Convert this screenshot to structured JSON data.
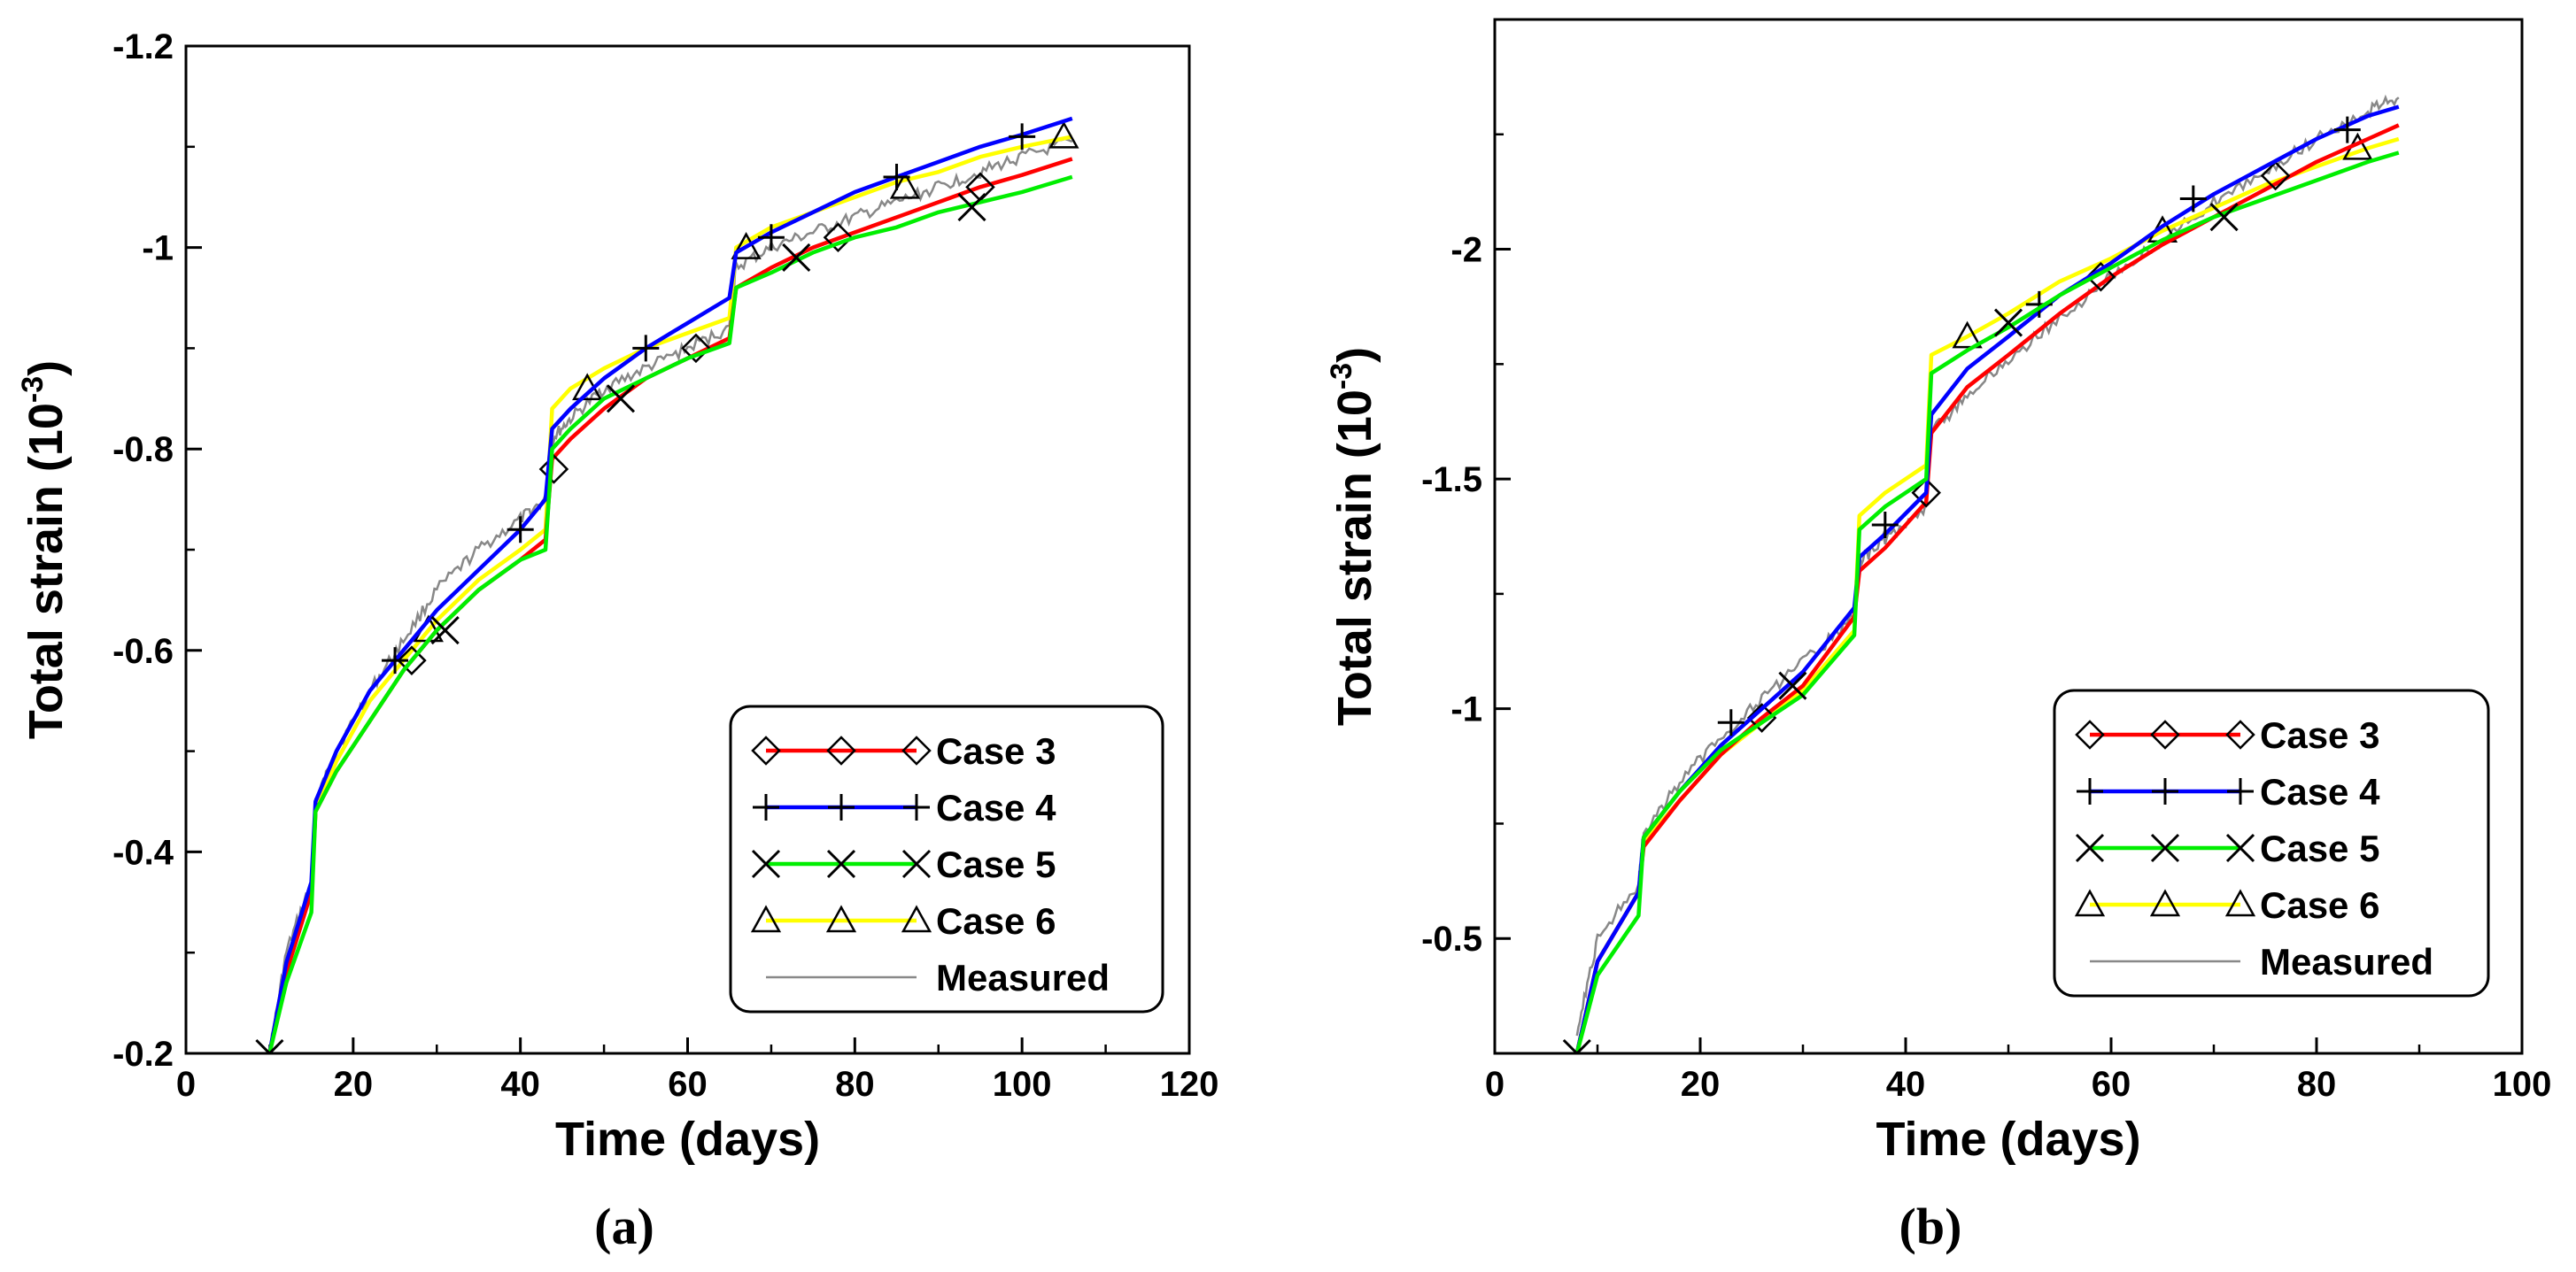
{
  "chart_data": [
    {
      "type": "line",
      "subfigure_label": "(a)",
      "xlabel": "Time (days)",
      "ylabel": "Total strain (10",
      "ylabel_exponent": "-3",
      "ylabel_close": ")",
      "xlim": [
        0,
        120
      ],
      "ylim": [
        -0.2,
        -1.2
      ],
      "xticks": [
        0,
        20,
        40,
        60,
        80,
        100,
        120
      ],
      "yticks": [
        -0.2,
        -0.4,
        -0.6,
        -0.8,
        -1,
        -1.2
      ],
      "xtick_labels": [
        "0",
        "20",
        "40",
        "60",
        "80",
        "100",
        "120"
      ],
      "ytick_labels": [
        "-0.2",
        "-0.4",
        "-0.6",
        "-0.8",
        "-1",
        "-1.2"
      ],
      "legend_position": "bottom-right",
      "series": [
        {
          "name": "Case 3",
          "color": "#ff0000",
          "marker": "diamond",
          "x": [
            10,
            12,
            15,
            15.5,
            18,
            22,
            26,
            30,
            35,
            40,
            43,
            43.8,
            46,
            50,
            55,
            60,
            65,
            65.8,
            70,
            75,
            80,
            85,
            90,
            95,
            100,
            106
          ],
          "y": [
            -0.2,
            -0.28,
            -0.36,
            -0.44,
            -0.48,
            -0.53,
            -0.58,
            -0.62,
            -0.66,
            -0.69,
            -0.71,
            -0.79,
            -0.81,
            -0.84,
            -0.87,
            -0.89,
            -0.91,
            -0.96,
            -0.98,
            -1.0,
            -1.015,
            -1.03,
            -1.045,
            -1.06,
            -1.072,
            -1.088
          ],
          "marker_x": [
            27,
            44,
            61,
            78,
            95
          ],
          "marker_y": [
            -0.59,
            -0.78,
            -0.9,
            -1.01,
            -1.06
          ]
        },
        {
          "name": "Case 4",
          "color": "#0000ff",
          "marker": "plus",
          "x": [
            10,
            12,
            15,
            15.5,
            18,
            22,
            26,
            30,
            35,
            40,
            43,
            43.8,
            46,
            50,
            55,
            60,
            65,
            65.8,
            70,
            75,
            80,
            85,
            90,
            95,
            100,
            106
          ],
          "y": [
            -0.2,
            -0.29,
            -0.37,
            -0.45,
            -0.5,
            -0.56,
            -0.6,
            -0.64,
            -0.68,
            -0.72,
            -0.75,
            -0.82,
            -0.84,
            -0.87,
            -0.9,
            -0.925,
            -0.95,
            -0.995,
            -1.015,
            -1.035,
            -1.055,
            -1.07,
            -1.085,
            -1.1,
            -1.112,
            -1.128
          ],
          "marker_x": [
            25,
            40,
            55,
            70,
            85,
            100
          ],
          "marker_y": [
            -0.59,
            -0.72,
            -0.9,
            -1.01,
            -1.07,
            -1.11
          ]
        },
        {
          "name": "Case 5",
          "color": "#00ee00",
          "marker": "x",
          "x": [
            10,
            12,
            15,
            15.5,
            18,
            22,
            26,
            30,
            35,
            40,
            43,
            43.8,
            46,
            50,
            55,
            60,
            65,
            65.8,
            70,
            75,
            80,
            85,
            90,
            95,
            100,
            106
          ],
          "y": [
            -0.2,
            -0.27,
            -0.34,
            -0.44,
            -0.48,
            -0.53,
            -0.58,
            -0.62,
            -0.66,
            -0.69,
            -0.7,
            -0.8,
            -0.82,
            -0.85,
            -0.87,
            -0.89,
            -0.905,
            -0.96,
            -0.975,
            -0.995,
            -1.01,
            -1.02,
            -1.035,
            -1.045,
            -1.055,
            -1.07
          ],
          "marker_x": [
            10,
            31,
            52,
            73,
            94
          ],
          "marker_y": [
            -0.2,
            -0.62,
            -0.85,
            -0.99,
            -1.04
          ]
        },
        {
          "name": "Case 6",
          "color": "#ffff00",
          "marker": "triangle",
          "x": [
            10,
            12,
            15,
            15.5,
            18,
            22,
            26,
            30,
            35,
            40,
            43,
            43.8,
            46,
            50,
            55,
            60,
            65,
            65.8,
            70,
            75,
            80,
            85,
            90,
            95,
            100,
            106
          ],
          "y": [
            -0.2,
            -0.29,
            -0.36,
            -0.44,
            -0.49,
            -0.55,
            -0.59,
            -0.63,
            -0.67,
            -0.7,
            -0.72,
            -0.84,
            -0.86,
            -0.88,
            -0.9,
            -0.915,
            -0.93,
            -1.0,
            -1.02,
            -1.035,
            -1.05,
            -1.065,
            -1.075,
            -1.09,
            -1.1,
            -1.11
          ],
          "marker_x": [
            29,
            48,
            67,
            86,
            105
          ],
          "marker_y": [
            -0.62,
            -0.86,
            -1.0,
            -1.06,
            -1.11
          ]
        },
        {
          "name": "Measured",
          "color": "#888888",
          "marker": "none",
          "x": [
            10,
            12,
            15,
            15.5,
            18,
            22,
            26,
            30,
            35,
            40,
            43,
            43.8,
            46,
            50,
            55,
            60,
            65,
            65.8,
            70,
            75,
            80,
            85,
            90,
            95,
            100,
            106
          ],
          "y": [
            -0.2,
            -0.3,
            -0.37,
            -0.45,
            -0.5,
            -0.56,
            -0.61,
            -0.66,
            -0.7,
            -0.73,
            -0.75,
            -0.81,
            -0.83,
            -0.86,
            -0.88,
            -0.9,
            -0.92,
            -0.98,
            -1.0,
            -1.015,
            -1.03,
            -1.045,
            -1.06,
            -1.075,
            -1.09,
            -1.105
          ]
        }
      ]
    },
    {
      "type": "line",
      "subfigure_label": "(b)",
      "xlabel": "Time (days)",
      "ylabel": "Total strain (10",
      "ylabel_exponent": "-3",
      "ylabel_close": ")",
      "xlim": [
        0,
        100
      ],
      "ylim": [
        -0.25,
        -2.5
      ],
      "xticks": [
        0,
        20,
        40,
        60,
        80,
        100
      ],
      "yticks": [
        -0.5,
        -1,
        -1.5,
        -2
      ],
      "xtick_labels": [
        "0",
        "20",
        "40",
        "60",
        "80",
        "100"
      ],
      "ytick_labels": [
        "-0.5",
        "-1",
        "-1.5",
        "-2"
      ],
      "legend_position": "bottom-right",
      "series": [
        {
          "name": "Case 3",
          "color": "#ff0000",
          "marker": "diamond",
          "x": [
            8,
            10,
            14,
            14.5,
            18,
            22,
            26,
            30,
            35,
            35.5,
            38,
            42,
            42.5,
            46,
            50,
            55,
            60,
            65,
            70,
            75,
            80,
            85,
            88
          ],
          "y": [
            -0.25,
            -0.45,
            -0.6,
            -0.7,
            -0.8,
            -0.9,
            -0.98,
            -1.05,
            -1.2,
            -1.3,
            -1.35,
            -1.45,
            -1.6,
            -1.7,
            -1.77,
            -1.86,
            -1.94,
            -2.01,
            -2.07,
            -2.13,
            -2.19,
            -2.24,
            -2.27
          ],
          "marker_x": [
            26,
            42,
            59,
            76
          ],
          "marker_y": [
            -0.98,
            -1.47,
            -1.94,
            -2.16
          ]
        },
        {
          "name": "Case 4",
          "color": "#0000ff",
          "marker": "plus",
          "x": [
            8,
            10,
            14,
            14.5,
            18,
            22,
            26,
            30,
            35,
            35.5,
            38,
            42,
            42.5,
            46,
            50,
            55,
            60,
            65,
            70,
            75,
            80,
            85,
            88
          ],
          "y": [
            -0.25,
            -0.45,
            -0.6,
            -0.72,
            -0.82,
            -0.92,
            -1.0,
            -1.08,
            -1.22,
            -1.33,
            -1.38,
            -1.47,
            -1.64,
            -1.74,
            -1.81,
            -1.9,
            -1.97,
            -2.05,
            -2.12,
            -2.18,
            -2.24,
            -2.29,
            -2.31
          ],
          "marker_x": [
            23,
            38,
            53,
            68,
            83
          ],
          "marker_y": [
            -0.97,
            -1.4,
            -1.88,
            -2.11,
            -2.26
          ]
        },
        {
          "name": "Case 5",
          "color": "#00ee00",
          "marker": "x",
          "x": [
            8,
            10,
            14,
            14.5,
            18,
            22,
            26,
            30,
            35,
            35.5,
            38,
            42,
            42.5,
            46,
            50,
            55,
            60,
            65,
            70,
            75,
            80,
            85,
            88
          ],
          "y": [
            -0.25,
            -0.42,
            -0.55,
            -0.72,
            -0.82,
            -0.91,
            -0.97,
            -1.03,
            -1.16,
            -1.39,
            -1.44,
            -1.5,
            -1.73,
            -1.78,
            -1.83,
            -1.9,
            -1.96,
            -2.02,
            -2.07,
            -2.11,
            -2.15,
            -2.19,
            -2.21
          ],
          "marker_x": [
            8,
            29,
            50,
            71
          ],
          "marker_y": [
            -0.25,
            -1.05,
            -1.84,
            -2.07
          ]
        },
        {
          "name": "Case 6",
          "color": "#ffff00",
          "marker": "triangle",
          "x": [
            8,
            10,
            14,
            14.5,
            18,
            22,
            26,
            30,
            35,
            35.5,
            38,
            42,
            42.5,
            46,
            50,
            55,
            60,
            65,
            70,
            75,
            80,
            85,
            88
          ],
          "y": [
            -0.25,
            -0.45,
            -0.6,
            -0.71,
            -0.8,
            -0.9,
            -0.97,
            -1.04,
            -1.17,
            -1.42,
            -1.47,
            -1.53,
            -1.77,
            -1.81,
            -1.86,
            -1.93,
            -1.98,
            -2.04,
            -2.09,
            -2.14,
            -2.18,
            -2.22,
            -2.24
          ],
          "marker_x": [
            46,
            65,
            84
          ],
          "marker_y": [
            -1.81,
            -2.04,
            -2.22
          ]
        },
        {
          "name": "Measured",
          "color": "#888888",
          "marker": "none",
          "x": [
            8,
            10,
            14,
            14.5,
            18,
            22,
            26,
            30,
            35,
            35.5,
            38,
            42,
            42.5,
            46,
            50,
            55,
            60,
            65,
            70,
            75,
            80,
            85,
            88
          ],
          "y": [
            -0.3,
            -0.5,
            -0.62,
            -0.73,
            -0.84,
            -0.94,
            -1.02,
            -1.1,
            -1.2,
            -1.32,
            -1.37,
            -1.44,
            -1.6,
            -1.68,
            -1.76,
            -1.85,
            -1.94,
            -2.02,
            -2.1,
            -2.17,
            -2.24,
            -2.3,
            -2.33
          ]
        }
      ]
    }
  ]
}
